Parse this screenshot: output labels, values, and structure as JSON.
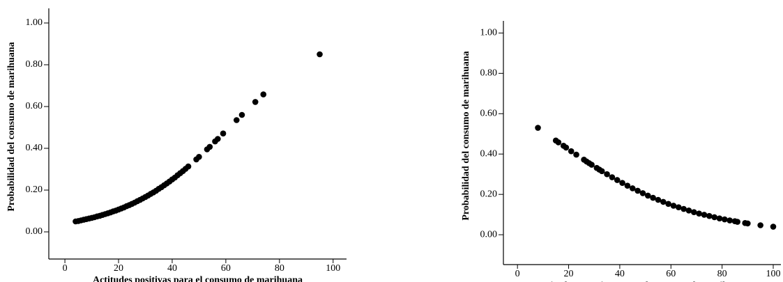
{
  "chart_data": [
    {
      "type": "scatter",
      "x_label": "Actitudes positivas para el consumo de marihuana",
      "y_label": "Probabilidad del consumo de marihuana",
      "color": "#000000",
      "x": [
        4,
        5,
        6,
        7,
        8,
        9,
        10,
        11,
        12,
        13,
        14,
        15,
        16,
        17,
        18,
        19,
        20,
        21,
        22,
        23,
        24,
        25,
        26,
        27,
        28,
        29,
        30,
        31,
        32,
        33,
        34,
        35,
        36,
        37,
        38,
        39,
        40,
        41,
        42,
        43,
        44,
        45,
        46,
        49,
        50,
        53,
        54,
        56,
        57,
        59,
        64,
        66,
        71,
        74,
        95
      ],
      "y": [
        0.05,
        0.052,
        0.055,
        0.058,
        0.061,
        0.064,
        0.067,
        0.07,
        0.074,
        0.077,
        0.081,
        0.085,
        0.089,
        0.093,
        0.098,
        0.102,
        0.107,
        0.112,
        0.117,
        0.123,
        0.128,
        0.134,
        0.14,
        0.147,
        0.153,
        0.16,
        0.167,
        0.174,
        0.182,
        0.189,
        0.197,
        0.206,
        0.214,
        0.223,
        0.232,
        0.241,
        0.251,
        0.26,
        0.271,
        0.281,
        0.291,
        0.302,
        0.313,
        0.347,
        0.359,
        0.395,
        0.407,
        0.433,
        0.445,
        0.471,
        0.535,
        0.56,
        0.622,
        0.658,
        0.85
      ],
      "xlim": [
        -6,
        105
      ],
      "ylim": [
        -0.13,
        1.07
      ],
      "xticks": [
        0,
        20,
        40,
        60,
        80,
        100
      ],
      "yticks": [
        {
          "value": 0,
          "label": "0.00"
        },
        {
          "value": 0.2,
          "label": "0.20"
        },
        {
          "value": 0.4,
          "label": "0.40"
        },
        {
          "value": 0.6,
          "label": "0.60"
        },
        {
          "value": 0.8,
          "label": "0.80"
        },
        {
          "value": 1,
          "label": "1.00"
        }
      ]
    },
    {
      "type": "scatter",
      "x_label": "Actitudes negativas para el consumo de marihuana",
      "y_label": "Probabilidad del consumo de marihuana",
      "color": "#000000",
      "x": [
        8,
        15,
        16,
        18,
        19,
        21,
        23,
        26,
        27,
        28,
        29,
        31,
        32,
        33,
        35,
        37,
        39,
        41,
        43,
        45,
        47,
        49,
        51,
        53,
        55,
        57,
        59,
        61,
        63,
        65,
        67,
        69,
        71,
        73,
        75,
        77,
        79,
        81,
        83,
        85,
        86,
        89,
        90,
        95,
        100
      ],
      "y": [
        0.53,
        0.467,
        0.458,
        0.441,
        0.432,
        0.414,
        0.397,
        0.372,
        0.363,
        0.355,
        0.347,
        0.331,
        0.323,
        0.315,
        0.3,
        0.285,
        0.271,
        0.257,
        0.243,
        0.23,
        0.218,
        0.206,
        0.194,
        0.183,
        0.173,
        0.163,
        0.153,
        0.144,
        0.136,
        0.128,
        0.12,
        0.112,
        0.105,
        0.099,
        0.093,
        0.087,
        0.081,
        0.076,
        0.071,
        0.067,
        0.064,
        0.058,
        0.056,
        0.047,
        0.04
      ],
      "xlim": [
        -5.5,
        103
      ],
      "ylim": [
        -0.148,
        1.06
      ],
      "xticks": [
        0,
        20,
        40,
        60,
        80,
        100
      ],
      "yticks": [
        {
          "value": 0,
          "label": "0.00"
        },
        {
          "value": 0.2,
          "label": "0.20"
        },
        {
          "value": 0.4,
          "label": "0.40"
        },
        {
          "value": 0.6,
          "label": "0.60"
        },
        {
          "value": 0.8,
          "label": "0.80"
        },
        {
          "value": 1,
          "label": "1.00"
        }
      ]
    }
  ]
}
